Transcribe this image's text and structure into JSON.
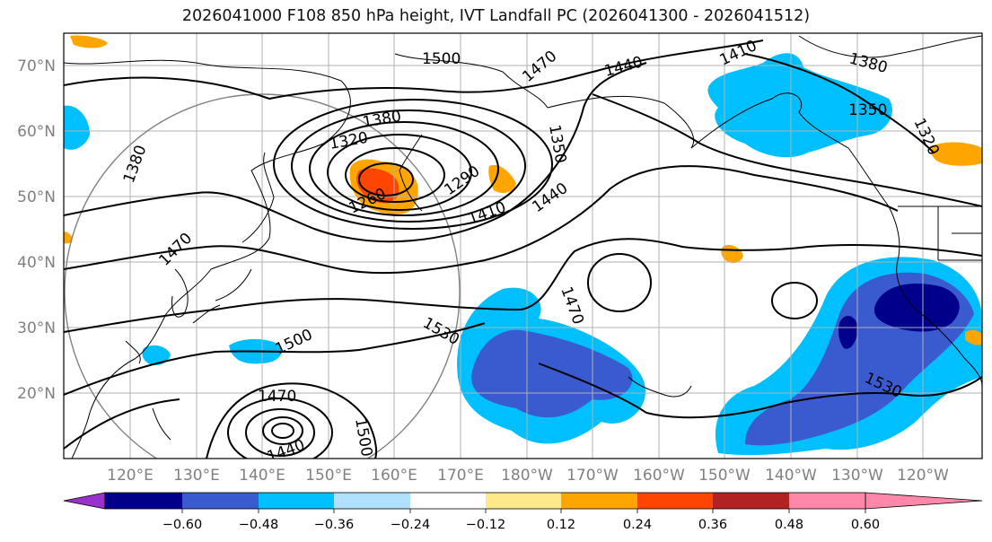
{
  "title": "2026041000 F108 850 hPa height, IVT Landfall PC (2026041300 - 2026041512)",
  "map": {
    "lon_labels": [
      "120°E",
      "130°E",
      "140°E",
      "150°E",
      "160°E",
      "170°E",
      "180°W",
      "170°W",
      "160°W",
      "150°W",
      "140°W",
      "130°W",
      "120°W"
    ],
    "lat_labels": [
      "70°N",
      "60°N",
      "50°N",
      "40°N",
      "30°N",
      "20°N"
    ],
    "contour_labels": [
      "1500",
      "1470",
      "1440",
      "1410",
      "1380",
      "1350",
      "1320",
      "1380",
      "1320",
      "1380",
      "1290",
      "1260",
      "1350",
      "1410",
      "1440",
      "1470",
      "1470",
      "1530",
      "1500",
      "1470",
      "1440",
      "1500",
      "1530"
    ],
    "contour_color": "#000000",
    "gridline_color": "#b0b0b0",
    "coastline_color": "#000000"
  },
  "colorbar": {
    "colors": [
      "#9932cc",
      "#00008b",
      "#3a5bd0",
      "#00bfff",
      "#b0e0ff",
      "#ffffff",
      "#ffe98a",
      "#ffa500",
      "#ff4500",
      "#b22222",
      "#ff88aa"
    ],
    "tick_labels": [
      "−0.60",
      "−0.48",
      "−0.36",
      "−0.24",
      "−0.12",
      "0.12",
      "0.24",
      "0.36",
      "0.48",
      "0.60"
    ],
    "extend": "both"
  }
}
